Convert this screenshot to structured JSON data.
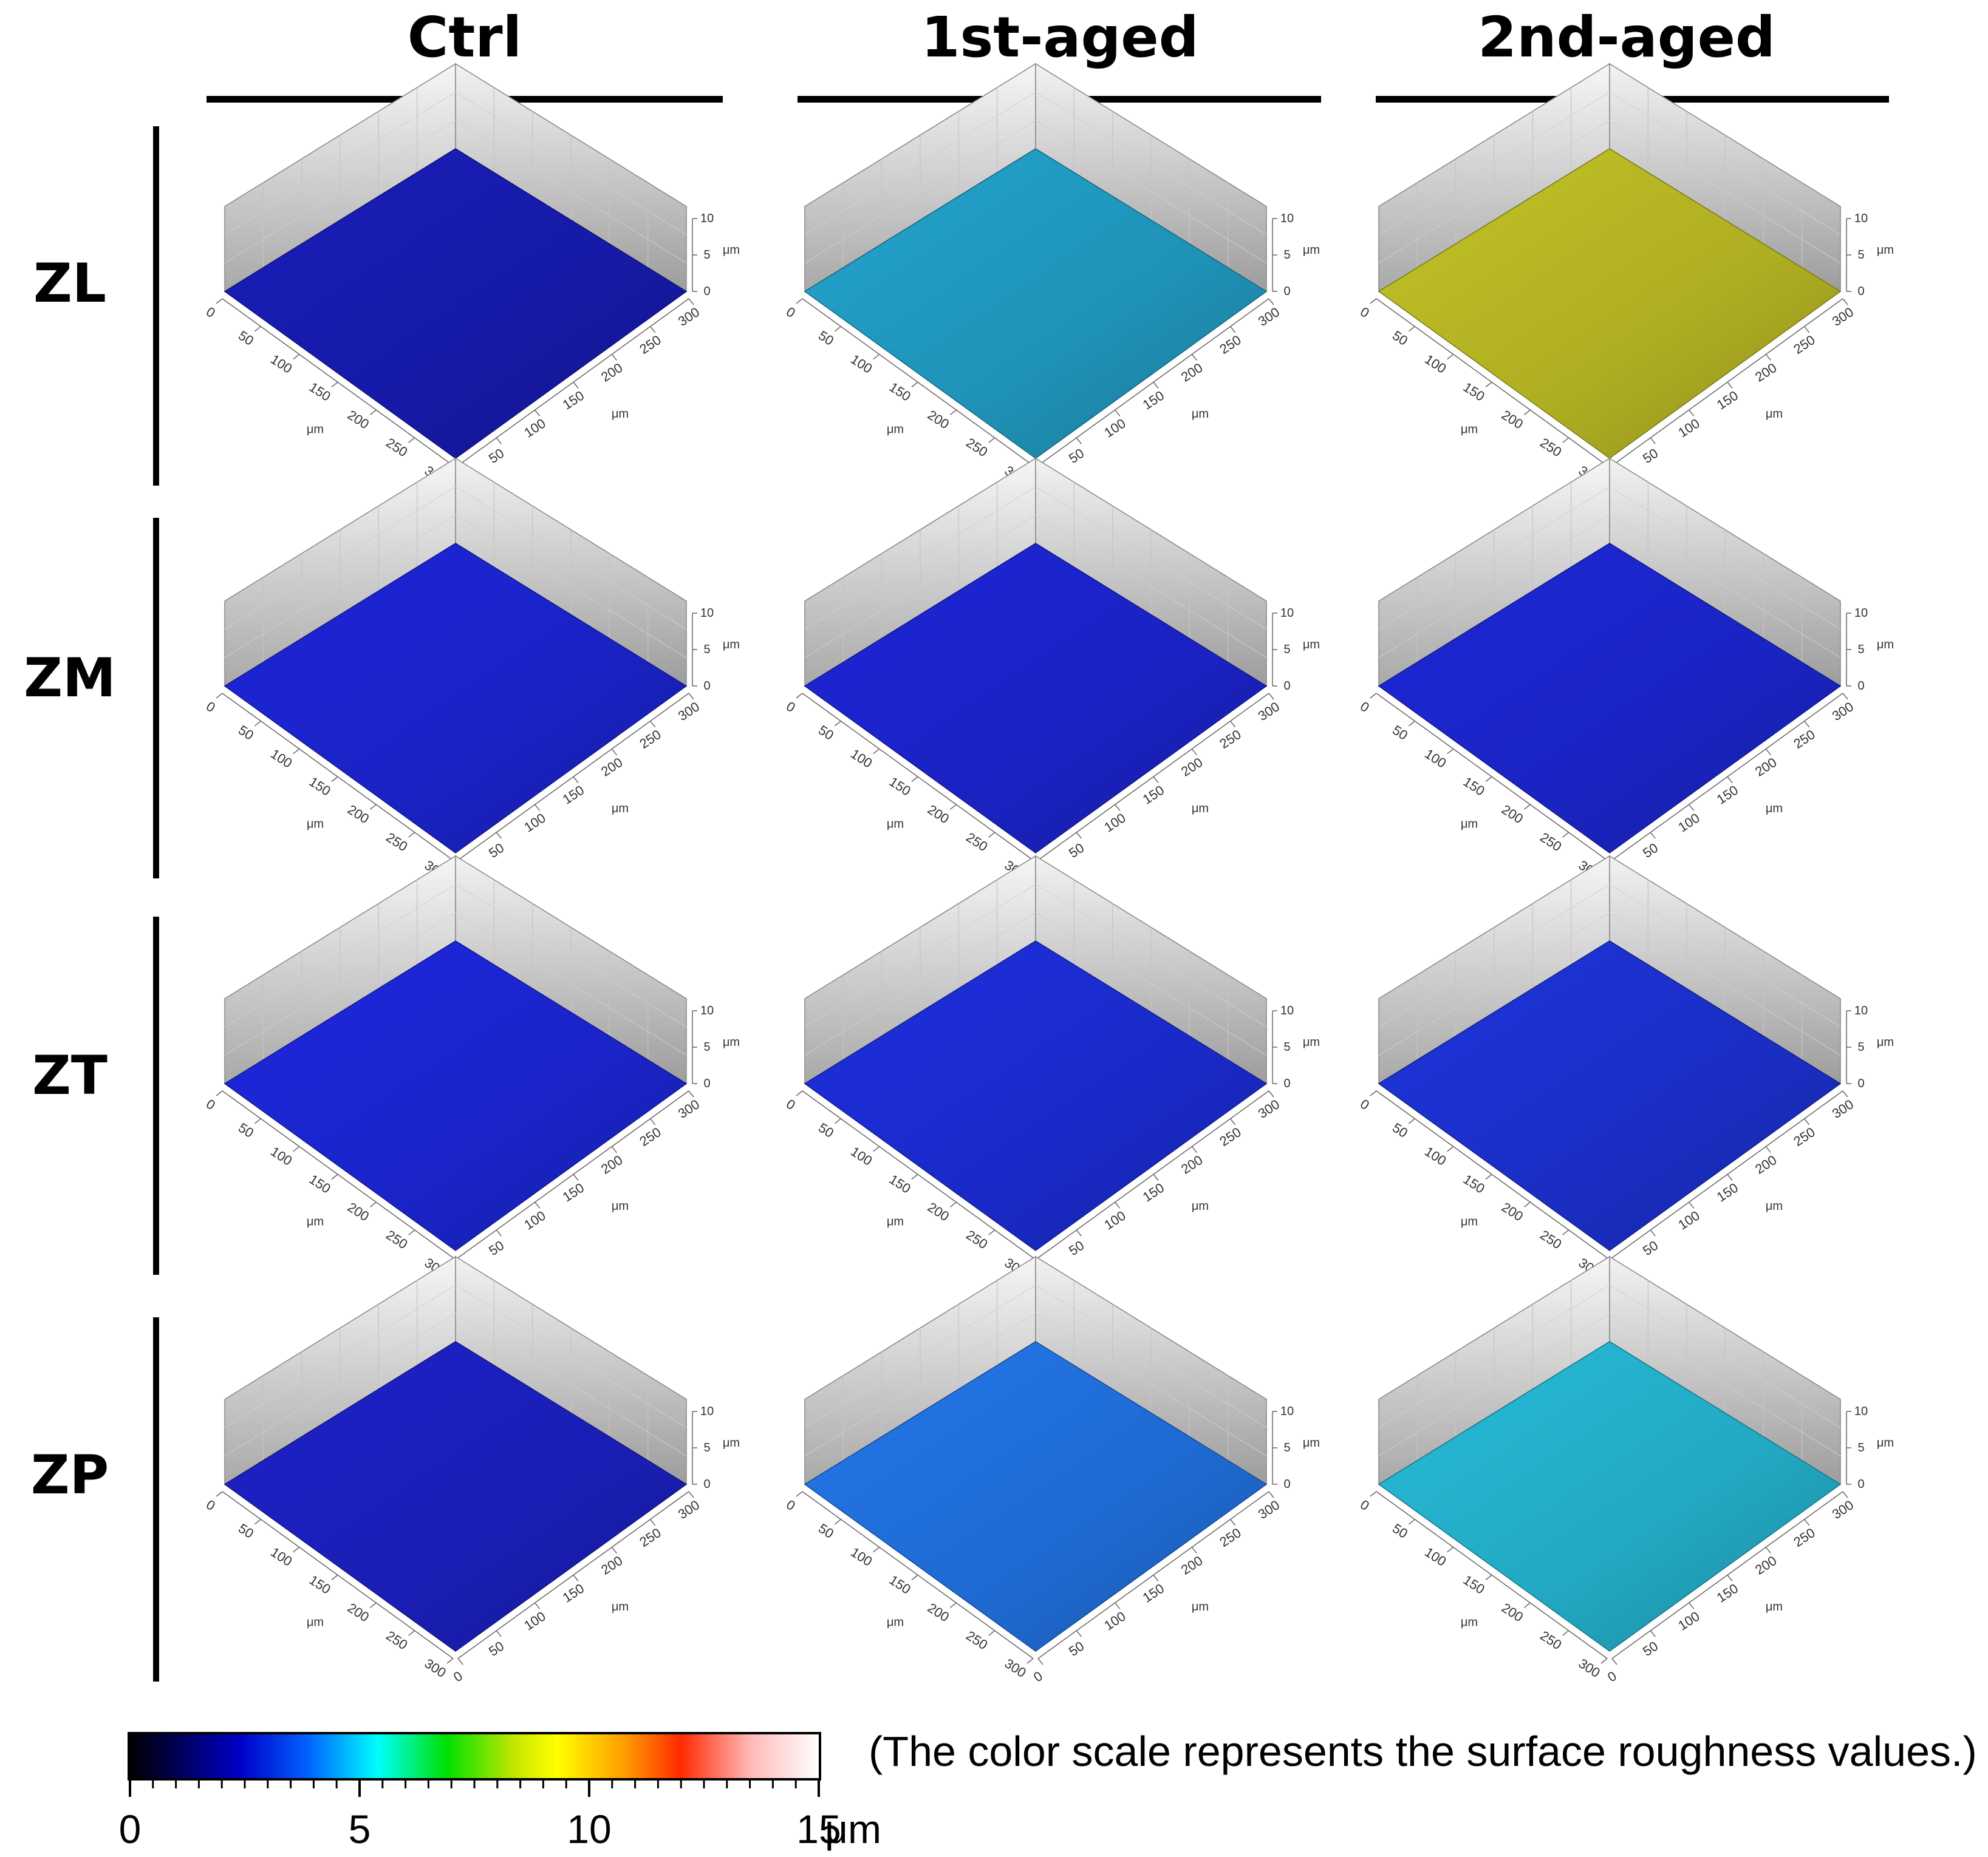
{
  "columns": [
    "Ctrl",
    "1st-aged",
    "2nd-aged"
  ],
  "rows": [
    "ZL",
    "ZM",
    "ZT",
    "ZP"
  ],
  "axis": {
    "x_ticks": [
      "0",
      "50",
      "100",
      "150",
      "200",
      "250",
      "300"
    ],
    "y_ticks": [
      "0",
      "50",
      "100",
      "150",
      "200",
      "250",
      "300"
    ],
    "z_ticks": [
      "0",
      "5",
      "10"
    ],
    "unit": "μm"
  },
  "panels": [
    {
      "row": "ZL",
      "column": "Ctrl",
      "color": "#161aa6"
    },
    {
      "row": "ZL",
      "column": "1st-aged",
      "color": "#1f92b8"
    },
    {
      "row": "ZL",
      "column": "2nd-aged",
      "color": "#aeae22"
    },
    {
      "row": "ZM",
      "column": "Ctrl",
      "color": "#1a22c4"
    },
    {
      "row": "ZM",
      "column": "1st-aged",
      "color": "#1a22c2"
    },
    {
      "row": "ZM",
      "column": "2nd-aged",
      "color": "#1a24c2"
    },
    {
      "row": "ZT",
      "column": "Ctrl",
      "color": "#1a24c8"
    },
    {
      "row": "ZT",
      "column": "1st-aged",
      "color": "#1a2ac8"
    },
    {
      "row": "ZT",
      "column": "2nd-aged",
      "color": "#1a2ec4"
    },
    {
      "row": "ZP",
      "column": "Ctrl",
      "color": "#1a1eb4"
    },
    {
      "row": "ZP",
      "column": "1st-aged",
      "color": "#1f6ad2"
    },
    {
      "row": "ZP",
      "column": "2nd-aged",
      "color": "#22a8c2"
    }
  ],
  "colorbar": {
    "tick_labels": [
      "0",
      "5",
      "10",
      "15"
    ],
    "unit": "μm",
    "min": 0,
    "max": 15,
    "caption": "(The color scale represents the surface roughness values.)"
  }
}
